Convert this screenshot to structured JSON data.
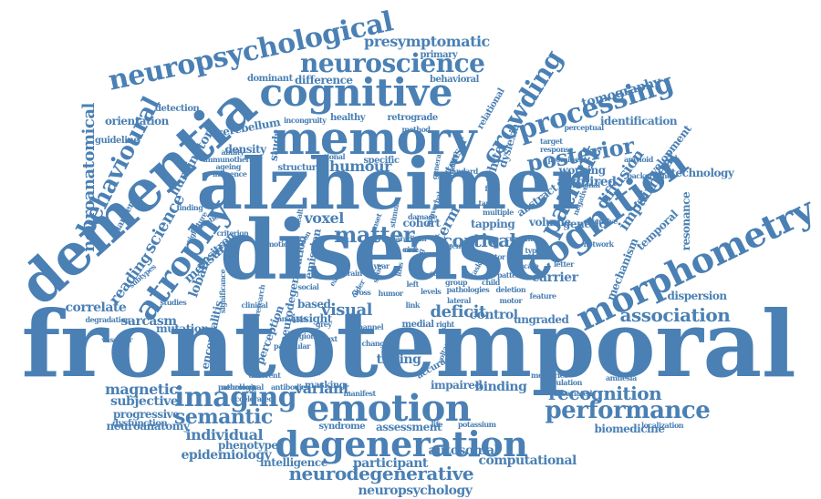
{
  "color": "#4a80b4",
  "words": [
    {
      "text": "frontotemporal"
    },
    {
      "text": "disease"
    },
    {
      "text": "alzheimer"
    },
    {
      "text": "dementia"
    },
    {
      "text": "memory"
    },
    {
      "text": "cognitive"
    },
    {
      "text": "emotion"
    },
    {
      "text": "degeneration"
    },
    {
      "text": "neuropsychological"
    },
    {
      "text": "neuroscience"
    },
    {
      "text": "cognition"
    },
    {
      "text": "morphometry"
    },
    {
      "text": "crowding"
    },
    {
      "text": "processing"
    },
    {
      "text": "posterior"
    },
    {
      "text": "atrophy"
    },
    {
      "text": "imaging"
    },
    {
      "text": "performance"
    },
    {
      "text": "semantic"
    },
    {
      "text": "neurodegenerative"
    },
    {
      "text": "matter"
    },
    {
      "text": "cortical"
    },
    {
      "text": "behavioural"
    },
    {
      "text": "patient"
    },
    {
      "text": "association"
    },
    {
      "text": "recognition"
    },
    {
      "text": "neuroanatomical"
    },
    {
      "text": "visual"
    },
    {
      "text": "deficit"
    },
    {
      "text": "humour"
    },
    {
      "text": "presymptomatic"
    },
    {
      "text": "voxel"
    },
    {
      "text": "diffusion"
    },
    {
      "text": "science"
    },
    {
      "text": "acquired"
    },
    {
      "text": "impairment"
    },
    {
      "text": "individual"
    },
    {
      "text": "variant"
    },
    {
      "text": "magnetic"
    },
    {
      "text": "neuropsychology"
    },
    {
      "text": "computational"
    },
    {
      "text": "participant"
    },
    {
      "text": "autosomal"
    },
    {
      "text": "subjective"
    },
    {
      "text": "progressive"
    },
    {
      "text": "neuroanatomy"
    },
    {
      "text": "epidemiology"
    },
    {
      "text": "intelligence"
    },
    {
      "text": "phenotype"
    },
    {
      "text": "biomedicine"
    },
    {
      "text": "dispersion"
    },
    {
      "text": "control"
    },
    {
      "text": "binding"
    },
    {
      "text": "timing"
    },
    {
      "text": "sarcasm"
    },
    {
      "text": "correlate"
    },
    {
      "text": "mutation"
    },
    {
      "text": "carrier"
    },
    {
      "text": "tomography"
    },
    {
      "text": "working"
    },
    {
      "text": "identification"
    },
    {
      "text": "development"
    },
    {
      "text": "difference"
    },
    {
      "text": "dominant"
    },
    {
      "text": "behavioral"
    },
    {
      "text": "healthy"
    },
    {
      "text": "retrograde"
    },
    {
      "text": "orientation"
    },
    {
      "text": "detection"
    },
    {
      "text": "guideline"
    },
    {
      "text": "huntington"
    },
    {
      "text": "cerebellum"
    },
    {
      "text": "density"
    },
    {
      "text": "study"
    },
    {
      "text": "reading"
    },
    {
      "text": "lobar"
    },
    {
      "text": "measure"
    },
    {
      "text": "positron"
    },
    {
      "text": "technology"
    },
    {
      "text": "resonance"
    },
    {
      "text": "temporal"
    },
    {
      "text": "mechanism"
    },
    {
      "text": "white"
    },
    {
      "text": "dyslexia"
    },
    {
      "text": "relational"
    },
    {
      "text": "term"
    },
    {
      "text": "tensor"
    },
    {
      "text": "based"
    },
    {
      "text": "insight"
    },
    {
      "text": "ungraded"
    },
    {
      "text": "encephalitis"
    },
    {
      "text": "dysfunction"
    },
    {
      "text": "accuracy"
    },
    {
      "text": "impaired"
    },
    {
      "text": "assessment"
    },
    {
      "text": "syndrome"
    },
    {
      "text": "masking"
    },
    {
      "text": "location"
    },
    {
      "text": "cohort"
    },
    {
      "text": "tapping"
    },
    {
      "text": "volume"
    },
    {
      "text": "genetic"
    },
    {
      "text": "abstract"
    },
    {
      "text": "primary"
    },
    {
      "text": "neurodegeneration"
    },
    {
      "text": "emission"
    },
    {
      "text": "structural"
    },
    {
      "text": "specific"
    },
    {
      "text": "medial"
    },
    {
      "text": "flanker"
    },
    {
      "text": "incongruity"
    },
    {
      "text": "sectional"
    },
    {
      "text": "ageing"
    },
    {
      "text": "influence"
    },
    {
      "text": "criterion"
    },
    {
      "text": "finding"
    },
    {
      "text": "education"
    },
    {
      "text": "neurology"
    },
    {
      "text": "antibodies"
    },
    {
      "text": "emotional"
    },
    {
      "text": "clinical"
    },
    {
      "text": "cartoon"
    },
    {
      "text": "motor"
    },
    {
      "text": "network"
    },
    {
      "text": "national"
    },
    {
      "text": "nonverbal"
    },
    {
      "text": "standard"
    },
    {
      "text": "method"
    },
    {
      "text": "change"
    },
    {
      "text": "health"
    },
    {
      "text": "vascular"
    },
    {
      "text": "degradation"
    },
    {
      "text": "perception"
    },
    {
      "text": "social"
    },
    {
      "text": "grey"
    },
    {
      "text": "humor"
    },
    {
      "text": "older"
    },
    {
      "text": "short"
    },
    {
      "text": "life"
    },
    {
      "text": "potassium"
    },
    {
      "text": "background"
    },
    {
      "text": "pathologies"
    },
    {
      "text": "feature"
    },
    {
      "text": "memories"
    },
    {
      "text": "particular"
    },
    {
      "text": "regional"
    },
    {
      "text": "amnesia"
    },
    {
      "text": "population"
    },
    {
      "text": "associated"
    },
    {
      "text": "analysis"
    },
    {
      "text": "channel"
    },
    {
      "text": "voltage"
    },
    {
      "text": "pathological"
    },
    {
      "text": "accelerated"
    },
    {
      "text": "manifest"
    },
    {
      "text": "research"
    },
    {
      "text": "ability"
    },
    {
      "text": "signature"
    },
    {
      "text": "subtypes"
    },
    {
      "text": "significance"
    },
    {
      "text": "localization"
    },
    {
      "text": "immunotherapy"
    },
    {
      "text": "different"
    },
    {
      "text": "damage"
    },
    {
      "text": "target"
    },
    {
      "text": "response"
    },
    {
      "text": "perceptual"
    },
    {
      "text": "prominent"
    },
    {
      "text": "negative"
    },
    {
      "text": "extensive"
    },
    {
      "text": "amyloid"
    },
    {
      "text": "pattern"
    },
    {
      "text": "spacing"
    },
    {
      "text": "group"
    },
    {
      "text": "lateral"
    },
    {
      "text": "factor"
    },
    {
      "text": "current"
    },
    {
      "text": "multiple"
    },
    {
      "text": "general"
    },
    {
      "text": "function"
    },
    {
      "text": "studies"
    },
    {
      "text": "child"
    },
    {
      "text": "deletion"
    },
    {
      "text": "levels"
    },
    {
      "text": "text"
    },
    {
      "text": "year"
    },
    {
      "text": "loss"
    },
    {
      "text": "scale"
    },
    {
      "text": "letter"
    },
    {
      "text": "paradigm"
    },
    {
      "text": "stimuli"
    },
    {
      "text": "tau"
    },
    {
      "text": "brain"
    },
    {
      "text": "early"
    },
    {
      "text": "onset"
    },
    {
      "text": "face"
    },
    {
      "text": "cross"
    },
    {
      "text": "link"
    },
    {
      "text": "right"
    },
    {
      "text": "left"
    },
    {
      "text": "task"
    },
    {
      "text": "gene"
    },
    {
      "text": "scan"
    },
    {
      "text": "type"
    },
    {
      "text": "case"
    },
    {
      "text": "risk"
    },
    {
      "text": "mri"
    }
  ]
}
